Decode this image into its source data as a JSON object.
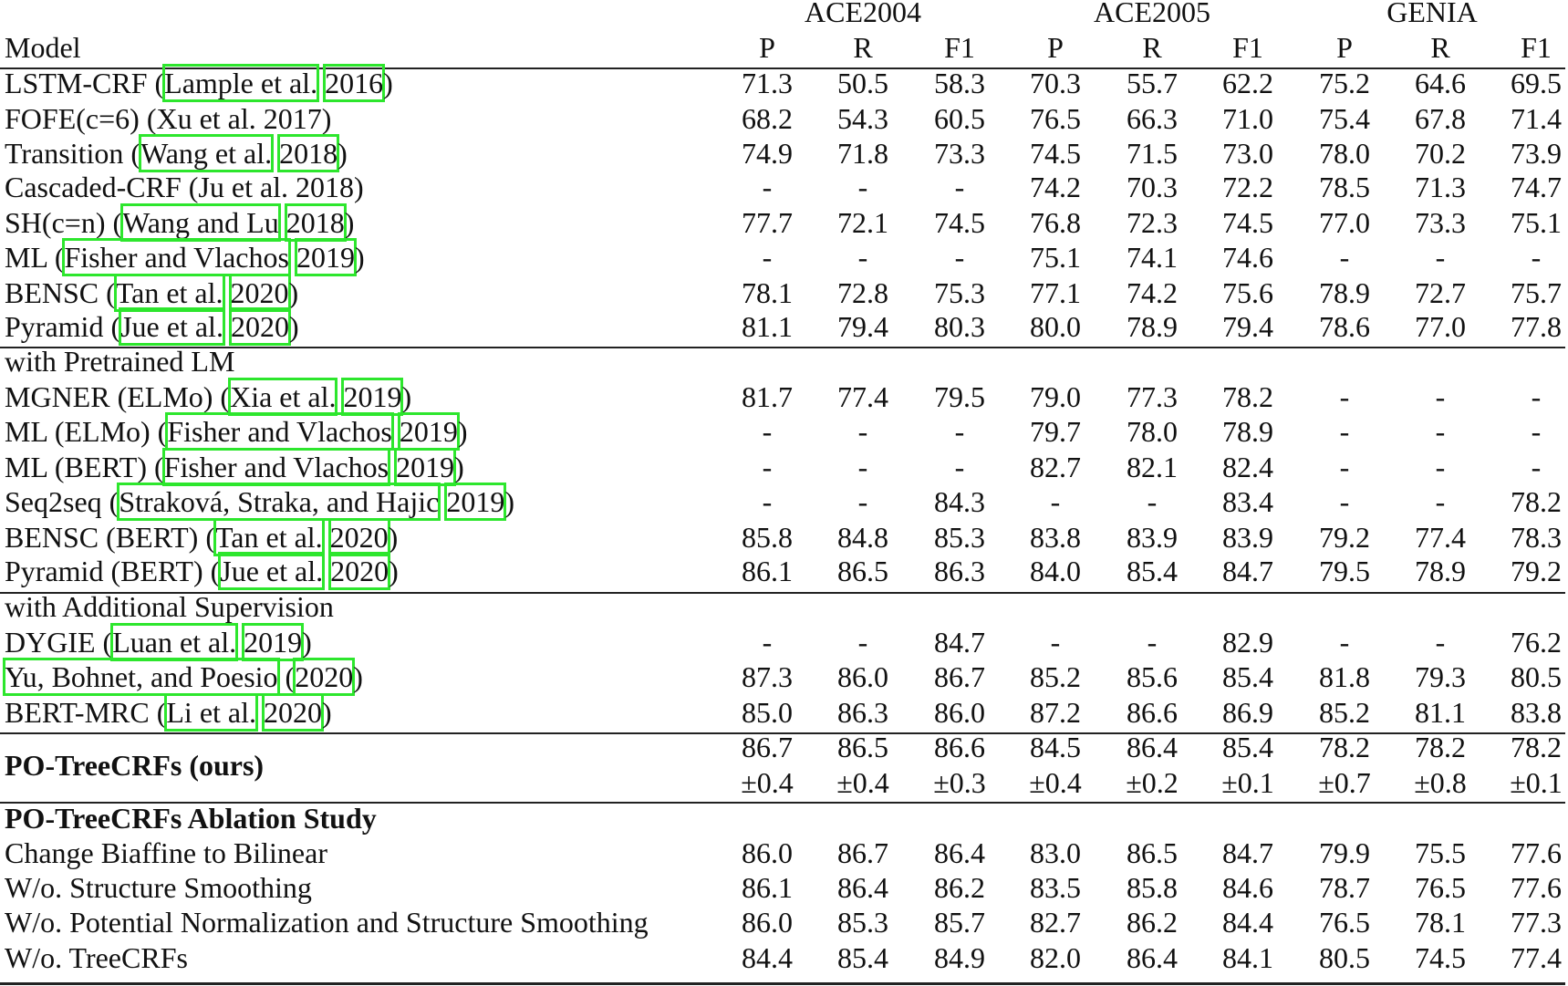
{
  "header": {
    "model_label": "Model",
    "groups": [
      "ACE2004",
      "ACE2005",
      "GENIA"
    ],
    "columns": [
      "P",
      "R",
      "F1",
      "P",
      "R",
      "F1",
      "P",
      "R",
      "F1"
    ]
  },
  "colors": {
    "citation_box": "#2de62d",
    "text": "#111111",
    "rule": "#222222"
  },
  "sections": [
    {
      "title": "",
      "rows": [
        {
          "model": [
            {
              "t": "LSTM-CRF ("
            },
            {
              "t": "Lample et al.",
              "cite": true
            },
            {
              "t": " "
            },
            {
              "t": "2016",
              "cite": true
            },
            {
              "t": ")"
            }
          ],
          "values": [
            "71.3",
            "50.5",
            "58.3",
            "70.3",
            "55.7",
            "62.2",
            "75.2",
            "64.6",
            "69.5"
          ]
        },
        {
          "model": [
            {
              "t": "FOFE(c=6) (Xu et al. 2017)"
            }
          ],
          "values": [
            "68.2",
            "54.3",
            "60.5",
            "76.5",
            "66.3",
            "71.0",
            "75.4",
            "67.8",
            "71.4"
          ]
        },
        {
          "model": [
            {
              "t": "Transition ("
            },
            {
              "t": "Wang et al.",
              "cite": true
            },
            {
              "t": " "
            },
            {
              "t": "2018",
              "cite": true
            },
            {
              "t": ")"
            }
          ],
          "values": [
            "74.9",
            "71.8",
            "73.3",
            "74.5",
            "71.5",
            "73.0",
            "78.0",
            "70.2",
            "73.9"
          ]
        },
        {
          "model": [
            {
              "t": "Cascaded-CRF (Ju et al. 2018)"
            }
          ],
          "values": [
            "-",
            "-",
            "-",
            "74.2",
            "70.3",
            "72.2",
            "78.5",
            "71.3",
            "74.7"
          ]
        },
        {
          "model": [
            {
              "t": "SH(c=n) ("
            },
            {
              "t": "Wang and Lu",
              "cite": true
            },
            {
              "t": " "
            },
            {
              "t": "2018",
              "cite": true
            },
            {
              "t": ")"
            }
          ],
          "values": [
            "77.7",
            "72.1",
            "74.5",
            "76.8",
            "72.3",
            "74.5",
            "77.0",
            "73.3",
            "75.1"
          ]
        },
        {
          "model": [
            {
              "t": "ML ("
            },
            {
              "t": "Fisher and Vlachos",
              "cite": true
            },
            {
              "t": " "
            },
            {
              "t": "2019",
              "cite": true
            },
            {
              "t": ")"
            }
          ],
          "values": [
            "-",
            "-",
            "-",
            "75.1",
            "74.1",
            "74.6",
            "-",
            "-",
            "-"
          ]
        },
        {
          "model": [
            {
              "t": "BENSC ("
            },
            {
              "t": "Tan et al.",
              "cite": true
            },
            {
              "t": " "
            },
            {
              "t": "2020",
              "cite": true
            },
            {
              "t": ")"
            }
          ],
          "values": [
            "78.1",
            "72.8",
            "75.3",
            "77.1",
            "74.2",
            "75.6",
            "78.9",
            "72.7",
            "75.7"
          ]
        },
        {
          "model": [
            {
              "t": "Pyramid ("
            },
            {
              "t": "Jue et al.",
              "cite": true
            },
            {
              "t": " "
            },
            {
              "t": "2020",
              "cite": true
            },
            {
              "t": ")"
            }
          ],
          "values": [
            "81.1",
            "79.4",
            "80.3",
            "80.0",
            "78.9",
            "79.4",
            "78.6",
            "77.0",
            "77.8"
          ]
        }
      ]
    },
    {
      "title": "with Pretrained LM",
      "rows": [
        {
          "model": [
            {
              "t": "MGNER (ELMo) ("
            },
            {
              "t": "Xia et al.",
              "cite": true
            },
            {
              "t": " "
            },
            {
              "t": "2019",
              "cite": true
            },
            {
              "t": ")"
            }
          ],
          "values": [
            "81.7",
            "77.4",
            "79.5",
            "79.0",
            "77.3",
            "78.2",
            "-",
            "-",
            "-"
          ]
        },
        {
          "model": [
            {
              "t": "ML (ELMo) ("
            },
            {
              "t": "Fisher and Vlachos",
              "cite": true
            },
            {
              "t": " "
            },
            {
              "t": "2019",
              "cite": true
            },
            {
              "t": ")"
            }
          ],
          "values": [
            "-",
            "-",
            "-",
            "79.7",
            "78.0",
            "78.9",
            "-",
            "-",
            "-"
          ]
        },
        {
          "model": [
            {
              "t": "ML (BERT) ("
            },
            {
              "t": "Fisher and Vlachos",
              "cite": true
            },
            {
              "t": " "
            },
            {
              "t": "2019",
              "cite": true
            },
            {
              "t": ")"
            }
          ],
          "values": [
            "-",
            "-",
            "-",
            "82.7",
            "82.1",
            "82.4",
            "-",
            "-",
            "-"
          ]
        },
        {
          "model": [
            {
              "t": "Seq2seq ("
            },
            {
              "t": "Straková, Straka, and Hajic",
              "cite": true
            },
            {
              "t": " "
            },
            {
              "t": "2019",
              "cite": true
            },
            {
              "t": ")"
            }
          ],
          "values": [
            "-",
            "-",
            "84.3",
            "-",
            "-",
            "83.4",
            "-",
            "-",
            "78.2"
          ]
        },
        {
          "model": [
            {
              "t": "BENSC (BERT) ("
            },
            {
              "t": "Tan et al.",
              "cite": true
            },
            {
              "t": " "
            },
            {
              "t": "2020",
              "cite": true
            },
            {
              "t": ")"
            }
          ],
          "values": [
            "85.8",
            "84.8",
            "85.3",
            "83.8",
            "83.9",
            "83.9",
            "79.2",
            "77.4",
            "78.3"
          ]
        },
        {
          "model": [
            {
              "t": "Pyramid (BERT) ("
            },
            {
              "t": "Jue et al.",
              "cite": true
            },
            {
              "t": " "
            },
            {
              "t": "2020",
              "cite": true
            },
            {
              "t": ")"
            }
          ],
          "values": [
            "86.1",
            "86.5",
            "86.3",
            "84.0",
            "85.4",
            "84.7",
            "79.5",
            "78.9",
            "79.2"
          ]
        }
      ]
    },
    {
      "title": "with Additional Supervision",
      "rows": [
        {
          "model": [
            {
              "t": "DYGIE ("
            },
            {
              "t": "Luan et al.",
              "cite": true
            },
            {
              "t": " "
            },
            {
              "t": "2019",
              "cite": true
            },
            {
              "t": ")"
            }
          ],
          "values": [
            "-",
            "-",
            "84.7",
            "-",
            "-",
            "82.9",
            "-",
            "-",
            "76.2"
          ]
        },
        {
          "model": [
            {
              "t": "Yu, Bohnet, and Poesio",
              "cite": true
            },
            {
              "t": " ("
            },
            {
              "t": "2020",
              "cite": true
            },
            {
              "t": ")"
            }
          ],
          "values": [
            "87.3",
            "86.0",
            "86.7",
            "85.2",
            "85.6",
            "85.4",
            "81.8",
            "79.3",
            "80.5"
          ]
        },
        {
          "model": [
            {
              "t": "BERT-MRC ("
            },
            {
              "t": "Li et al.",
              "cite": true
            },
            {
              "t": " "
            },
            {
              "t": "2020",
              "cite": true
            },
            {
              "t": ")"
            }
          ],
          "values": [
            "85.0",
            "86.3",
            "86.0",
            "87.2",
            "86.6",
            "86.9",
            "85.2",
            "81.1",
            "83.8"
          ]
        }
      ]
    }
  ],
  "ours": {
    "label": "PO-TreeCRFs (ours)",
    "values": [
      "86.7",
      "86.5",
      "86.6",
      "84.5",
      "86.4",
      "85.4",
      "78.2",
      "78.2",
      "78.2"
    ],
    "std": [
      "±0.4",
      "±0.4",
      "±0.3",
      "±0.4",
      "±0.2",
      "±0.1",
      "±0.7",
      "±0.8",
      "±0.1"
    ]
  },
  "ablation": {
    "title": "PO-TreeCRFs Ablation Study",
    "rows": [
      {
        "model": "Change Biaffine to Bilinear",
        "values": [
          "86.0",
          "86.7",
          "86.4",
          "83.0",
          "86.5",
          "84.7",
          "79.9",
          "75.5",
          "77.6"
        ]
      },
      {
        "model": "W/o. Structure Smoothing",
        "values": [
          "86.1",
          "86.4",
          "86.2",
          "83.5",
          "85.8",
          "84.6",
          "78.7",
          "76.5",
          "77.6"
        ]
      },
      {
        "model": "W/o. Potential Normalization and Structure Smoothing",
        "values": [
          "86.0",
          "85.3",
          "85.7",
          "82.7",
          "86.2",
          "84.4",
          "76.5",
          "78.1",
          "77.3"
        ]
      },
      {
        "model": "W/o. TreeCRFs",
        "values": [
          "84.4",
          "85.4",
          "84.9",
          "82.0",
          "86.4",
          "84.1",
          "80.5",
          "74.5",
          "77.4"
        ]
      }
    ]
  }
}
